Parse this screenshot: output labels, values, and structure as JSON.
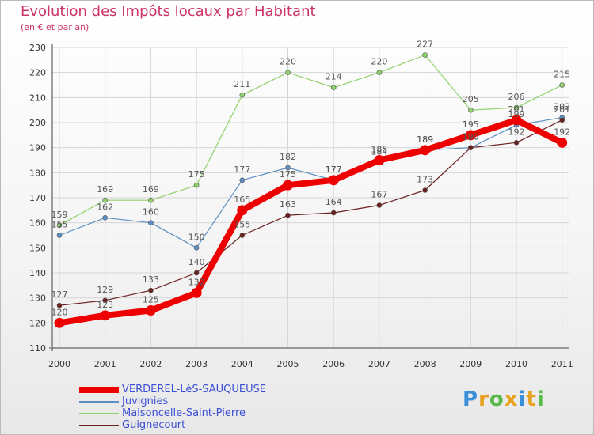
{
  "title": "Evolution des Impôts locaux par Habitant",
  "subtitle": "(en € et par an)",
  "logo": {
    "text": "Proxiti",
    "colors": [
      "#3a8fd8",
      "#e8a020",
      "#59b84a",
      "#e8a020",
      "#3a8fd8",
      "#e8a020",
      "#59b84a"
    ]
  },
  "chart_data": {
    "type": "line",
    "title": "Evolution des Impôts locaux par Habitant",
    "subtitle": "(en € et par an)",
    "xlabel": "",
    "ylabel": "",
    "ylim": [
      110,
      230
    ],
    "yticks": [
      "110",
      "120",
      "130",
      "140",
      "150",
      "160",
      "170",
      "180",
      "190",
      "200",
      "210",
      "220",
      "230"
    ],
    "grid": true,
    "legend": "bottom-left",
    "categories": [
      "2000",
      "2001",
      "2002",
      "2003",
      "2004",
      "2005",
      "2006",
      "2007",
      "2008",
      "2009",
      "2010",
      "2011"
    ],
    "series": [
      {
        "name": "Maisoncelle-Saint-Pierre",
        "color": "#8fd16a",
        "values": [
          159,
          169,
          169,
          175,
          211,
          220,
          214,
          220,
          227,
          205,
          206,
          215
        ],
        "labels": [
          "159",
          "169",
          "169",
          "175",
          "211",
          "220",
          "214",
          "220",
          "227",
          "205",
          "206",
          "215"
        ]
      },
      {
        "name": "Juvignies",
        "color": "#5b8fc4",
        "values": [
          155,
          162,
          160,
          150,
          177,
          182,
          177,
          184,
          189,
          190,
          199,
          202
        ],
        "labels": [
          "155",
          "162",
          "160",
          "150",
          "177",
          "182",
          "177",
          "184",
          "189",
          "190",
          "199",
          "202"
        ]
      },
      {
        "name": "Guignecourt",
        "color": "#6b1f1f",
        "values": [
          127,
          129,
          133,
          140,
          155,
          163,
          164,
          167,
          173,
          190,
          192,
          201
        ],
        "labels": [
          "127",
          "129",
          "133",
          "140",
          "155",
          "163",
          "164",
          "167",
          "173",
          "190",
          "192",
          "201"
        ]
      },
      {
        "name": "VERDEREL-LèS-SAUQUEUSE",
        "color": "#ee0000",
        "values": [
          120,
          123,
          125,
          132,
          165,
          175,
          177,
          185,
          189,
          195,
          201,
          192
        ],
        "labels": [
          "120",
          "123",
          "125",
          "132",
          "165",
          "175",
          "177",
          "185",
          "189",
          "195",
          "201",
          "192"
        ]
      }
    ],
    "legend_entries": [
      {
        "name": "VERDEREL-LèS-SAUQUEUSE",
        "color": "#ee0000"
      },
      {
        "name": "Juvignies",
        "color": "#5b8fc4"
      },
      {
        "name": "Maisoncelle-Saint-Pierre",
        "color": "#8fd16a"
      },
      {
        "name": "Guignecourt",
        "color": "#6b1f1f"
      }
    ]
  }
}
